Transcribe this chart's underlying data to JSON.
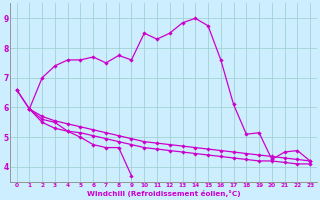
{
  "xlabel": "Windchill (Refroidissement éolien,°C)",
  "background_color": "#cceeff",
  "line_color": "#cc00cc",
  "xlim": [
    -0.5,
    23.5
  ],
  "ylim": [
    3.5,
    9.5
  ],
  "xticks": [
    0,
    1,
    2,
    3,
    4,
    5,
    6,
    7,
    8,
    9,
    10,
    11,
    12,
    13,
    14,
    15,
    16,
    17,
    18,
    19,
    20,
    21,
    22,
    23
  ],
  "yticks": [
    4,
    5,
    6,
    7,
    8,
    9
  ],
  "grid_color": "#99cccc",
  "curve_main_x": [
    0,
    1,
    2,
    3,
    4,
    5,
    6,
    7,
    8,
    9,
    10,
    11,
    12,
    13,
    14,
    15,
    16,
    17,
    18,
    19,
    20,
    21,
    22,
    23
  ],
  "curve_main_y": [
    6.6,
    5.95,
    7.0,
    7.4,
    7.6,
    7.6,
    7.7,
    7.5,
    7.75,
    7.6,
    8.5,
    8.3,
    8.5,
    8.85,
    9.0,
    8.75,
    7.6,
    6.1,
    5.1,
    5.15,
    4.25,
    4.5,
    4.55,
    4.2
  ],
  "curve_flat1_x": [
    0,
    1,
    2,
    3,
    4,
    5,
    6,
    7,
    8,
    9,
    10,
    11,
    12,
    13,
    14,
    15,
    16,
    17,
    18,
    19,
    20,
    21,
    22,
    23
  ],
  "curve_flat1_y": [
    6.6,
    5.95,
    5.5,
    5.3,
    5.2,
    5.15,
    5.05,
    4.95,
    4.85,
    4.75,
    4.65,
    4.6,
    4.55,
    4.5,
    4.45,
    4.4,
    4.35,
    4.3,
    4.25,
    4.2,
    4.2,
    4.15,
    4.1,
    4.1
  ],
  "curve_flat2_x": [
    1,
    2,
    3,
    4,
    5,
    6,
    7,
    8,
    9,
    10,
    11,
    12,
    13,
    14,
    15,
    16,
    17,
    18,
    19,
    20,
    21,
    22,
    23
  ],
  "curve_flat2_y": [
    5.95,
    5.7,
    5.55,
    5.45,
    5.35,
    5.25,
    5.15,
    5.05,
    4.95,
    4.85,
    4.8,
    4.75,
    4.7,
    4.65,
    4.6,
    4.55,
    4.5,
    4.45,
    4.4,
    4.35,
    4.3,
    4.25,
    4.2
  ],
  "curve_drop_x": [
    1,
    2,
    3,
    4,
    5,
    6,
    7,
    8,
    9
  ],
  "curve_drop_y": [
    5.95,
    5.6,
    5.5,
    5.2,
    5.0,
    4.75,
    4.65,
    4.65,
    3.7
  ]
}
